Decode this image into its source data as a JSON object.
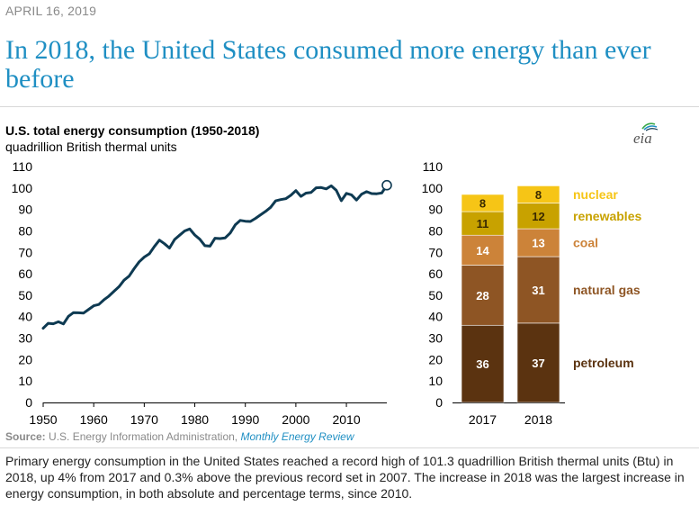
{
  "date": "APRIL 16, 2019",
  "headline": "In 2018, the United States consumed more energy than ever before",
  "logo_text": "eia",
  "colors": {
    "headline": "#1f8fc3",
    "line": "#0e3a52",
    "petroleum": "#5b3310",
    "natural_gas": "#8e5524",
    "coal": "#cc8339",
    "renewables": "#c8a200",
    "nuclear": "#f6c516",
    "source_link": "#1f8fc3"
  },
  "source": {
    "label": "Source:",
    "text": "U.S. Energy Information Administration,",
    "link": "Monthly Energy Review"
  },
  "caption": "Primary energy consumption in the United States reached a record high of 101.3 quadrillion British thermal units (Btu) in 2018, up 4% from 2017 and 0.3% above the previous record set in 2007. The increase in 2018 was the largest increase in energy consumption, in both absolute and percentage terms, since 2010.",
  "chart_data": [
    {
      "type": "line",
      "title": "U.S. total energy consumption (1950-2018)",
      "ylabel": "quadrillion British thermal units",
      "xlabel": "",
      "xlim": [
        1950,
        2018
      ],
      "ylim": [
        0,
        110
      ],
      "xticks": [
        1950,
        1960,
        1970,
        1980,
        1990,
        2000,
        2010
      ],
      "yticks": [
        0,
        10,
        20,
        30,
        40,
        50,
        60,
        70,
        80,
        90,
        100,
        110
      ],
      "x": [
        1950,
        1951,
        1952,
        1953,
        1954,
        1955,
        1956,
        1957,
        1958,
        1959,
        1960,
        1961,
        1962,
        1963,
        1964,
        1965,
        1966,
        1967,
        1968,
        1969,
        1970,
        1971,
        1972,
        1973,
        1974,
        1975,
        1976,
        1977,
        1978,
        1979,
        1980,
        1981,
        1982,
        1983,
        1984,
        1985,
        1986,
        1987,
        1988,
        1989,
        1990,
        1991,
        1992,
        1993,
        1994,
        1995,
        1996,
        1997,
        1998,
        1999,
        2000,
        2001,
        2002,
        2003,
        2004,
        2005,
        2006,
        2007,
        2008,
        2009,
        2010,
        2011,
        2012,
        2013,
        2014,
        2015,
        2016,
        2017,
        2018
      ],
      "values": [
        34.6,
        36.9,
        36.7,
        37.6,
        36.6,
        40.2,
        41.9,
        41.8,
        41.7,
        43.4,
        45.1,
        45.7,
        47.8,
        49.6,
        51.8,
        54.0,
        57.0,
        58.9,
        62.4,
        65.6,
        67.8,
        69.3,
        72.7,
        75.7,
        74.0,
        72.0,
        76.0,
        78.0,
        80.0,
        80.9,
        78.1,
        76.1,
        73.1,
        72.9,
        76.6,
        76.4,
        76.7,
        79.0,
        82.8,
        84.9,
        84.5,
        84.4,
        85.8,
        87.5,
        89.1,
        91.0,
        94.0,
        94.6,
        95.0,
        96.6,
        98.8,
        96.1,
        97.6,
        97.9,
        100.1,
        100.2,
        99.6,
        101.0,
        98.9,
        94.1,
        97.5,
        96.8,
        94.4,
        97.1,
        98.3,
        97.4,
        97.3,
        97.7,
        101.3
      ],
      "highlight_point": {
        "x": 2018,
        "value": 101.3
      }
    },
    {
      "type": "bar",
      "stacked": true,
      "categories": [
        "2017",
        "2018"
      ],
      "ylim": [
        0,
        110
      ],
      "yticks": [
        0,
        10,
        20,
        30,
        40,
        50,
        60,
        70,
        80,
        90,
        100,
        110
      ],
      "series": [
        {
          "name": "petroleum",
          "values": [
            36,
            37
          ],
          "labels": [
            "36",
            "37"
          ]
        },
        {
          "name": "natural gas",
          "values": [
            28,
            31
          ],
          "labels": [
            "28",
            "31"
          ]
        },
        {
          "name": "coal",
          "values": [
            14,
            13
          ],
          "labels": [
            "14",
            "13"
          ]
        },
        {
          "name": "renewables",
          "values": [
            11,
            12
          ],
          "labels": [
            "11",
            "12"
          ]
        },
        {
          "name": "nuclear",
          "values": [
            8,
            8
          ],
          "labels": [
            "8",
            "8"
          ]
        }
      ]
    }
  ]
}
